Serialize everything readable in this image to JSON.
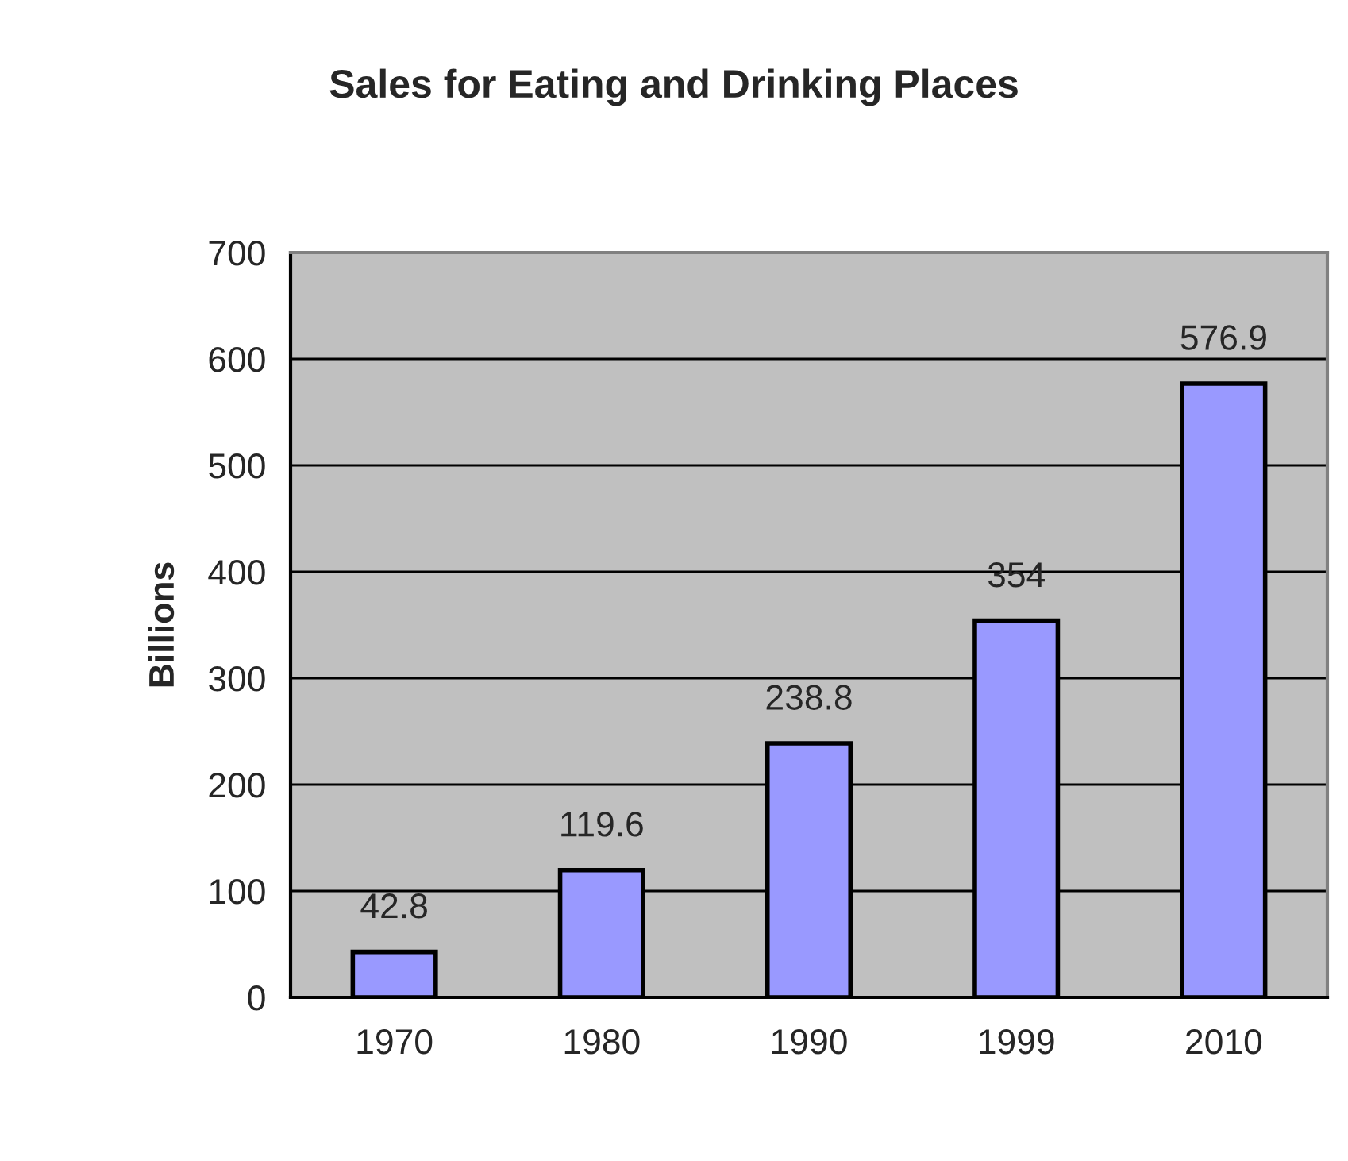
{
  "chart_data": {
    "type": "bar",
    "title": "Sales for Eating and Drinking Places",
    "ylabel": "Billions",
    "categories": [
      "1970",
      "1980",
      "1990",
      "1999",
      "2010"
    ],
    "values": [
      42.8,
      119.6,
      238.8,
      354,
      576.9
    ],
    "color": "#9999ff",
    "ylim": [
      0,
      700
    ],
    "yticks": [
      0,
      100,
      200,
      300,
      400,
      500,
      600,
      700
    ],
    "grid": "y",
    "data_labels": true
  }
}
